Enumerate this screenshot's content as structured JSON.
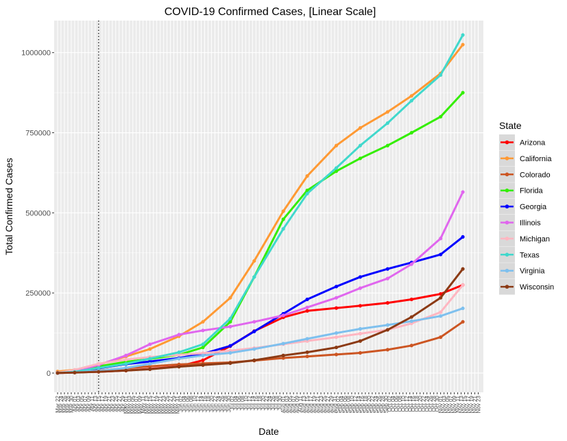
{
  "chart_data": {
    "type": "line",
    "title": "COVID-19 Confirmed Cases, [Linear Scale]",
    "xlabel": "Date",
    "ylabel": "Total Confirmed Cases",
    "ylim": [
      -60000,
      1100000
    ],
    "yticks": [
      0,
      250000,
      500000,
      750000,
      1000000
    ],
    "ytick_labels": [
      "0",
      "250000",
      "500000",
      "750000",
      "1000000"
    ],
    "x_start": "2020-03-22",
    "x_end": "2020-11-24",
    "x_range_days": [
      -2,
      249
    ],
    "x_tick_step_days": 2,
    "vline_date": "2020-04-15",
    "grid": true,
    "legend_position": "right",
    "legend_title": "State",
    "series": [
      {
        "name": "Arizona",
        "color": "#ff0000",
        "points": [
          [
            "2020-03-22",
            0
          ],
          [
            "2020-04-01",
            2000
          ],
          [
            "2020-04-15",
            4000
          ],
          [
            "2020-05-01",
            8000
          ],
          [
            "2020-05-15",
            13000
          ],
          [
            "2020-06-01",
            21000
          ],
          [
            "2020-06-15",
            40000
          ],
          [
            "2020-07-01",
            84000
          ],
          [
            "2020-07-15",
            131000
          ],
          [
            "2020-08-01",
            174000
          ],
          [
            "2020-08-15",
            194000
          ],
          [
            "2020-09-01",
            203000
          ],
          [
            "2020-09-15",
            210000
          ],
          [
            "2020-10-01",
            219000
          ],
          [
            "2020-10-15",
            230000
          ],
          [
            "2020-11-01",
            247000
          ],
          [
            "2020-11-14",
            275000
          ]
        ]
      },
      {
        "name": "California",
        "color": "#ff9933",
        "points": [
          [
            "2020-03-22",
            5000
          ],
          [
            "2020-04-01",
            10000
          ],
          [
            "2020-04-15",
            26000
          ],
          [
            "2020-05-01",
            52000
          ],
          [
            "2020-05-15",
            75000
          ],
          [
            "2020-06-01",
            115000
          ],
          [
            "2020-06-15",
            160000
          ],
          [
            "2020-07-01",
            235000
          ],
          [
            "2020-07-15",
            350000
          ],
          [
            "2020-08-01",
            505000
          ],
          [
            "2020-08-15",
            615000
          ],
          [
            "2020-09-01",
            710000
          ],
          [
            "2020-09-15",
            765000
          ],
          [
            "2020-10-01",
            815000
          ],
          [
            "2020-10-15",
            865000
          ],
          [
            "2020-11-01",
            935000
          ],
          [
            "2020-11-14",
            1025000
          ]
        ]
      },
      {
        "name": "Colorado",
        "color": "#cc5522",
        "points": [
          [
            "2020-03-22",
            500
          ],
          [
            "2020-04-01",
            3000
          ],
          [
            "2020-04-15",
            8000
          ],
          [
            "2020-05-01",
            15000
          ],
          [
            "2020-05-15",
            21000
          ],
          [
            "2020-06-01",
            27000
          ],
          [
            "2020-06-15",
            30000
          ],
          [
            "2020-07-01",
            33000
          ],
          [
            "2020-07-15",
            39000
          ],
          [
            "2020-08-01",
            47000
          ],
          [
            "2020-08-15",
            52000
          ],
          [
            "2020-09-01",
            58000
          ],
          [
            "2020-09-15",
            63000
          ],
          [
            "2020-10-01",
            73000
          ],
          [
            "2020-10-15",
            86000
          ],
          [
            "2020-11-01",
            112000
          ],
          [
            "2020-11-14",
            160000
          ]
        ]
      },
      {
        "name": "Florida",
        "color": "#33ee00",
        "points": [
          [
            "2020-03-22",
            1000
          ],
          [
            "2020-04-01",
            7000
          ],
          [
            "2020-04-15",
            21000
          ],
          [
            "2020-05-01",
            35000
          ],
          [
            "2020-05-15",
            44000
          ],
          [
            "2020-06-01",
            57000
          ],
          [
            "2020-06-15",
            80000
          ],
          [
            "2020-07-01",
            160000
          ],
          [
            "2020-07-15",
            300000
          ],
          [
            "2020-08-01",
            480000
          ],
          [
            "2020-08-15",
            570000
          ],
          [
            "2020-09-01",
            630000
          ],
          [
            "2020-09-15",
            670000
          ],
          [
            "2020-10-01",
            710000
          ],
          [
            "2020-10-15",
            750000
          ],
          [
            "2020-11-01",
            800000
          ],
          [
            "2020-11-14",
            875000
          ]
        ]
      },
      {
        "name": "Georgia",
        "color": "#0000ff",
        "points": [
          [
            "2020-03-22",
            600
          ],
          [
            "2020-04-01",
            5000
          ],
          [
            "2020-04-15",
            15000
          ],
          [
            "2020-05-01",
            28000
          ],
          [
            "2020-05-15",
            36000
          ],
          [
            "2020-06-01",
            47000
          ],
          [
            "2020-06-15",
            60000
          ],
          [
            "2020-07-01",
            85000
          ],
          [
            "2020-07-15",
            130000
          ],
          [
            "2020-08-01",
            185000
          ],
          [
            "2020-08-15",
            230000
          ],
          [
            "2020-09-01",
            270000
          ],
          [
            "2020-09-15",
            300000
          ],
          [
            "2020-10-01",
            325000
          ],
          [
            "2020-10-15",
            345000
          ],
          [
            "2020-11-01",
            370000
          ],
          [
            "2020-11-14",
            425000
          ]
        ]
      },
      {
        "name": "Illinois",
        "color": "#e066ee",
        "points": [
          [
            "2020-03-22",
            1300
          ],
          [
            "2020-04-01",
            7000
          ],
          [
            "2020-04-15",
            25000
          ],
          [
            "2020-05-01",
            55000
          ],
          [
            "2020-05-15",
            90000
          ],
          [
            "2020-06-01",
            120000
          ],
          [
            "2020-06-15",
            133000
          ],
          [
            "2020-07-01",
            145000
          ],
          [
            "2020-07-15",
            160000
          ],
          [
            "2020-08-01",
            180000
          ],
          [
            "2020-08-15",
            205000
          ],
          [
            "2020-09-01",
            235000
          ],
          [
            "2020-09-15",
            265000
          ],
          [
            "2020-10-01",
            295000
          ],
          [
            "2020-10-15",
            340000
          ],
          [
            "2020-11-01",
            420000
          ],
          [
            "2020-11-14",
            565000
          ]
        ]
      },
      {
        "name": "Michigan",
        "color": "#ffb6c1",
        "points": [
          [
            "2020-03-22",
            1000
          ],
          [
            "2020-04-01",
            10000
          ],
          [
            "2020-04-15",
            29000
          ],
          [
            "2020-05-01",
            42000
          ],
          [
            "2020-05-15",
            50000
          ],
          [
            "2020-06-01",
            57000
          ],
          [
            "2020-06-15",
            62000
          ],
          [
            "2020-07-01",
            70000
          ],
          [
            "2020-07-15",
            78000
          ],
          [
            "2020-08-01",
            90000
          ],
          [
            "2020-08-15",
            100000
          ],
          [
            "2020-09-01",
            112000
          ],
          [
            "2020-09-15",
            123000
          ],
          [
            "2020-10-01",
            135000
          ],
          [
            "2020-10-15",
            155000
          ],
          [
            "2020-11-01",
            190000
          ],
          [
            "2020-11-14",
            275000
          ]
        ]
      },
      {
        "name": "Texas",
        "color": "#40d8cc",
        "points": [
          [
            "2020-03-22",
            400
          ],
          [
            "2020-04-01",
            4000
          ],
          [
            "2020-04-15",
            16000
          ],
          [
            "2020-05-01",
            29000
          ],
          [
            "2020-05-15",
            45000
          ],
          [
            "2020-06-01",
            65000
          ],
          [
            "2020-06-15",
            90000
          ],
          [
            "2020-07-01",
            170000
          ],
          [
            "2020-07-15",
            300000
          ],
          [
            "2020-08-01",
            450000
          ],
          [
            "2020-08-15",
            560000
          ],
          [
            "2020-09-01",
            640000
          ],
          [
            "2020-09-15",
            710000
          ],
          [
            "2020-10-01",
            780000
          ],
          [
            "2020-10-15",
            850000
          ],
          [
            "2020-11-01",
            930000
          ],
          [
            "2020-11-14",
            1055000
          ]
        ]
      },
      {
        "name": "Virginia",
        "color": "#7ec0ee",
        "points": [
          [
            "2020-03-22",
            200
          ],
          [
            "2020-04-01",
            2000
          ],
          [
            "2020-04-15",
            7000
          ],
          [
            "2020-05-01",
            16000
          ],
          [
            "2020-05-15",
            29000
          ],
          [
            "2020-06-01",
            45000
          ],
          [
            "2020-06-15",
            55000
          ],
          [
            "2020-07-01",
            63000
          ],
          [
            "2020-07-15",
            75000
          ],
          [
            "2020-08-01",
            92000
          ],
          [
            "2020-08-15",
            107000
          ],
          [
            "2020-09-01",
            125000
          ],
          [
            "2020-09-15",
            138000
          ],
          [
            "2020-10-01",
            150000
          ],
          [
            "2020-10-15",
            162000
          ],
          [
            "2020-11-01",
            178000
          ],
          [
            "2020-11-14",
            202000
          ]
        ]
      },
      {
        "name": "Wisconsin",
        "color": "#8b3a14",
        "points": [
          [
            "2020-03-22",
            300
          ],
          [
            "2020-04-01",
            1500
          ],
          [
            "2020-04-15",
            4000
          ],
          [
            "2020-05-01",
            8000
          ],
          [
            "2020-05-15",
            12000
          ],
          [
            "2020-06-01",
            20000
          ],
          [
            "2020-06-15",
            25000
          ],
          [
            "2020-07-01",
            31000
          ],
          [
            "2020-07-15",
            40000
          ],
          [
            "2020-08-01",
            55000
          ],
          [
            "2020-08-15",
            65000
          ],
          [
            "2020-09-01",
            80000
          ],
          [
            "2020-09-15",
            100000
          ],
          [
            "2020-10-01",
            135000
          ],
          [
            "2020-10-15",
            175000
          ],
          [
            "2020-11-01",
            235000
          ],
          [
            "2020-11-14",
            325000
          ]
        ]
      }
    ]
  }
}
